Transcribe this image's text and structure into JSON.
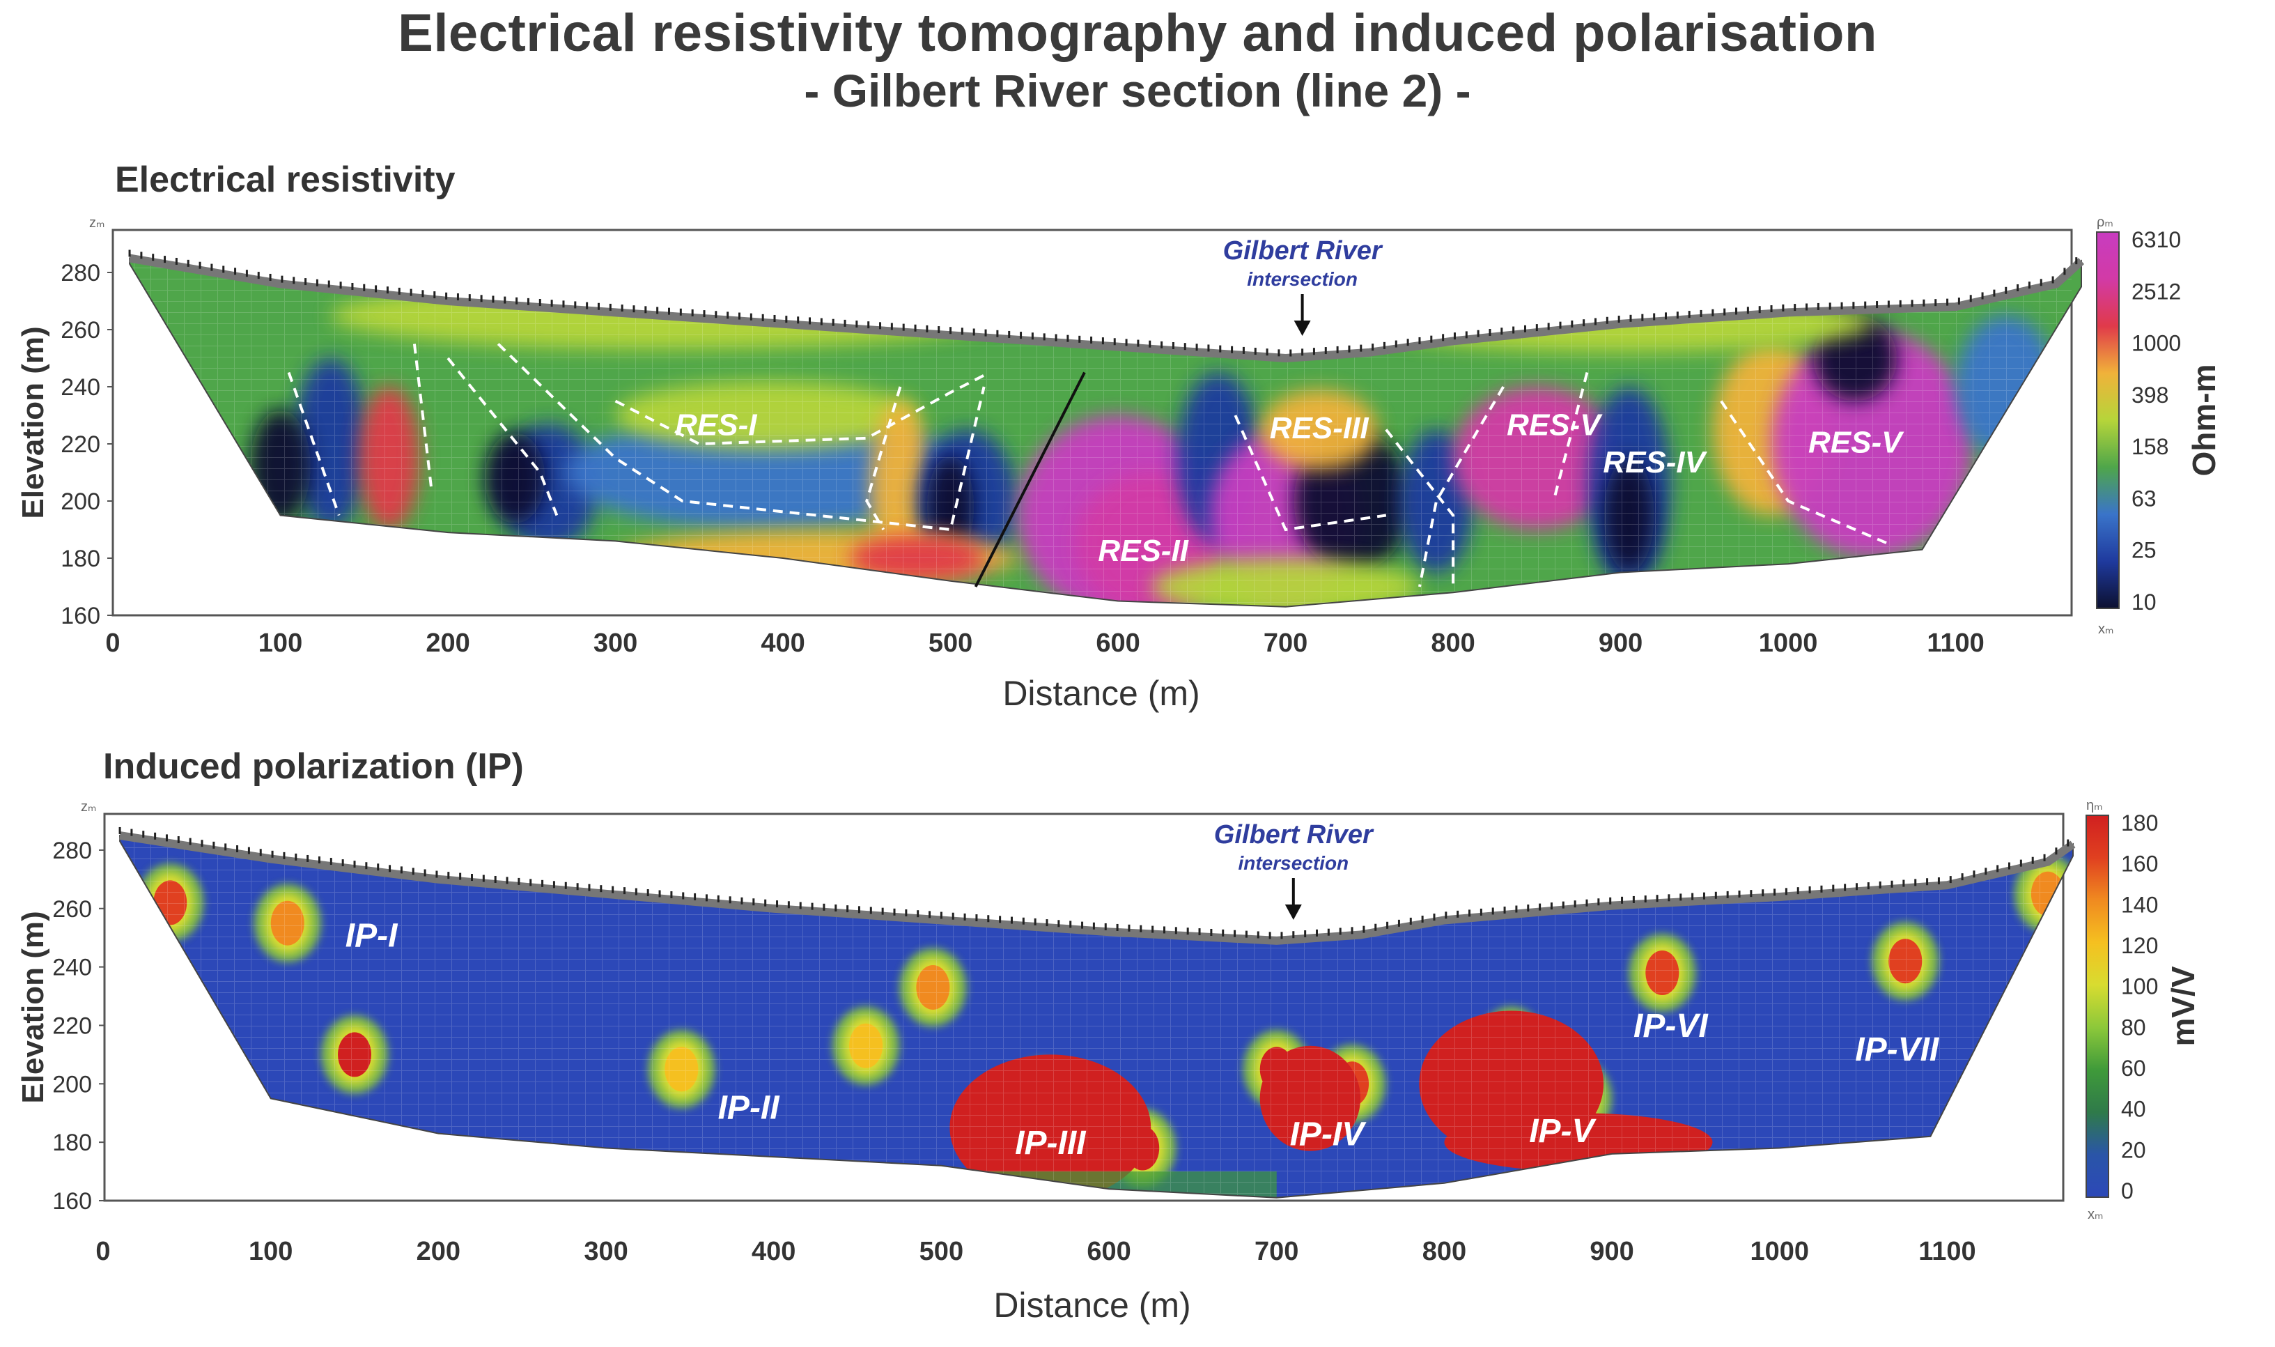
{
  "figure": {
    "title": "Electrical resistivity tomography and induced polarisation",
    "subtitle": "- Gilbert River section (line 2) -"
  },
  "chart_data": [
    {
      "type": "heatmap",
      "title": "Electrical resistivity",
      "xlabel": "Distance (m)",
      "ylabel": "Elevation (m)",
      "xlim": [
        0,
        1180
      ],
      "ylim": [
        160,
        290
      ],
      "xticks": [
        "0",
        "100",
        "200",
        "300",
        "400",
        "500",
        "600",
        "700",
        "800",
        "900",
        "1000",
        "1100"
      ],
      "yticks": [
        "160",
        "180",
        "200",
        "220",
        "240",
        "260",
        "280"
      ],
      "corner_labels": {
        "z": "zₘ",
        "x": "xₘ",
        "scale": "ρₘ"
      },
      "annotation": {
        "line1": "Gilbert River",
        "line2": "intersection",
        "x": 710
      },
      "colorbar": {
        "label": "Ohm-m",
        "ticks": [
          "10",
          "25",
          "63",
          "158",
          "398",
          "1000",
          "2512",
          "6310"
        ],
        "colors": [
          "#0c1030",
          "#1f3a9e",
          "#3a74c9",
          "#4fa64a",
          "#b6d53a",
          "#f0b23a",
          "#e03a4a",
          "#d23aa6",
          "#c83cc0"
        ]
      },
      "region_labels": [
        {
          "text": "RES-I",
          "x": 360,
          "y": 223
        },
        {
          "text": "RES-II",
          "x": 615,
          "y": 179
        },
        {
          "text": "RES-III",
          "x": 720,
          "y": 222
        },
        {
          "text": "RES-V",
          "x": 860,
          "y": 223
        },
        {
          "text": "RES-IV",
          "x": 920,
          "y": 210
        },
        {
          "text": "RES-V",
          "x": 1040,
          "y": 217
        }
      ],
      "topography": [
        [
          10,
          285
        ],
        [
          100,
          276
        ],
        [
          200,
          270
        ],
        [
          300,
          266
        ],
        [
          400,
          262
        ],
        [
          500,
          258
        ],
        [
          600,
          254
        ],
        [
          700,
          250
        ],
        [
          750,
          252
        ],
        [
          800,
          256
        ],
        [
          900,
          262
        ],
        [
          1000,
          266
        ],
        [
          1100,
          268
        ],
        [
          1160,
          276
        ],
        [
          1175,
          284
        ]
      ],
      "base": [
        [
          10,
          283
        ],
        [
          100,
          195
        ],
        [
          200,
          189
        ],
        [
          300,
          186
        ],
        [
          400,
          180
        ],
        [
          500,
          172
        ],
        [
          600,
          165
        ],
        [
          700,
          163
        ],
        [
          800,
          168
        ],
        [
          900,
          175
        ],
        [
          1000,
          178
        ],
        [
          1080,
          183
        ],
        [
          1175,
          275
        ]
      ]
    },
    {
      "type": "heatmap",
      "title": "Induced polarization (IP)",
      "xlabel": "Distance (m)",
      "ylabel": "Elevation (m)",
      "xlim": [
        0,
        1180
      ],
      "ylim": [
        160,
        290
      ],
      "xticks": [
        "0",
        "100",
        "200",
        "300",
        "400",
        "500",
        "600",
        "700",
        "800",
        "900",
        "1000",
        "1100"
      ],
      "yticks": [
        "160",
        "180",
        "200",
        "220",
        "240",
        "260",
        "280"
      ],
      "corner_labels": {
        "z": "zₘ",
        "x": "xₘ",
        "scale": "ηₘ"
      },
      "annotation": {
        "line1": "Gilbert River",
        "line2": "intersection",
        "x": 710
      },
      "colorbar": {
        "label": "mV/V",
        "ticks": [
          "0",
          "20",
          "40",
          "60",
          "80",
          "100",
          "120",
          "140",
          "160",
          "180"
        ],
        "colors": [
          "#2c48b8",
          "#2a55a8",
          "#2f7a4a",
          "#3f9a3a",
          "#8cc83a",
          "#d8dc30",
          "#f5c020",
          "#f08a20",
          "#e04020",
          "#d02020"
        ]
      },
      "region_labels": [
        {
          "text": "IP-I",
          "x": 160,
          "y": 247
        },
        {
          "text": "IP-II",
          "x": 385,
          "y": 188
        },
        {
          "text": "IP-III",
          "x": 565,
          "y": 176
        },
        {
          "text": "IP-IV",
          "x": 730,
          "y": 179
        },
        {
          "text": "IP-V",
          "x": 870,
          "y": 180
        },
        {
          "text": "IP-VI",
          "x": 935,
          "y": 216
        },
        {
          "text": "IP-VII",
          "x": 1070,
          "y": 208
        }
      ],
      "anomalies": [
        {
          "x": 40,
          "y": 262,
          "value": 160
        },
        {
          "x": 110,
          "y": 255,
          "value": 140
        },
        {
          "x": 150,
          "y": 210,
          "value": 170
        },
        {
          "x": 345,
          "y": 205,
          "value": 120
        },
        {
          "x": 455,
          "y": 213,
          "value": 110
        },
        {
          "x": 495,
          "y": 233,
          "value": 140
        },
        {
          "x": 560,
          "y": 195,
          "value": 175
        },
        {
          "x": 620,
          "y": 178,
          "value": 170
        },
        {
          "x": 700,
          "y": 205,
          "value": 175
        },
        {
          "x": 745,
          "y": 200,
          "value": 165
        },
        {
          "x": 840,
          "y": 213,
          "value": 175
        },
        {
          "x": 880,
          "y": 195,
          "value": 178
        },
        {
          "x": 930,
          "y": 238,
          "value": 150
        },
        {
          "x": 1075,
          "y": 242,
          "value": 165
        },
        {
          "x": 1160,
          "y": 265,
          "value": 140
        }
      ],
      "topography": [
        [
          10,
          285
        ],
        [
          100,
          277
        ],
        [
          200,
          270
        ],
        [
          300,
          265
        ],
        [
          400,
          260
        ],
        [
          500,
          256
        ],
        [
          600,
          252
        ],
        [
          700,
          249
        ],
        [
          750,
          251
        ],
        [
          800,
          256
        ],
        [
          900,
          261
        ],
        [
          1000,
          264
        ],
        [
          1100,
          268
        ],
        [
          1160,
          276
        ],
        [
          1175,
          282
        ]
      ],
      "base": [
        [
          10,
          283
        ],
        [
          100,
          195
        ],
        [
          200,
          183
        ],
        [
          300,
          178
        ],
        [
          400,
          175
        ],
        [
          500,
          172
        ],
        [
          600,
          164
        ],
        [
          700,
          161
        ],
        [
          800,
          166
        ],
        [
          900,
          176
        ],
        [
          1000,
          178
        ],
        [
          1090,
          182
        ],
        [
          1175,
          278
        ]
      ]
    }
  ]
}
